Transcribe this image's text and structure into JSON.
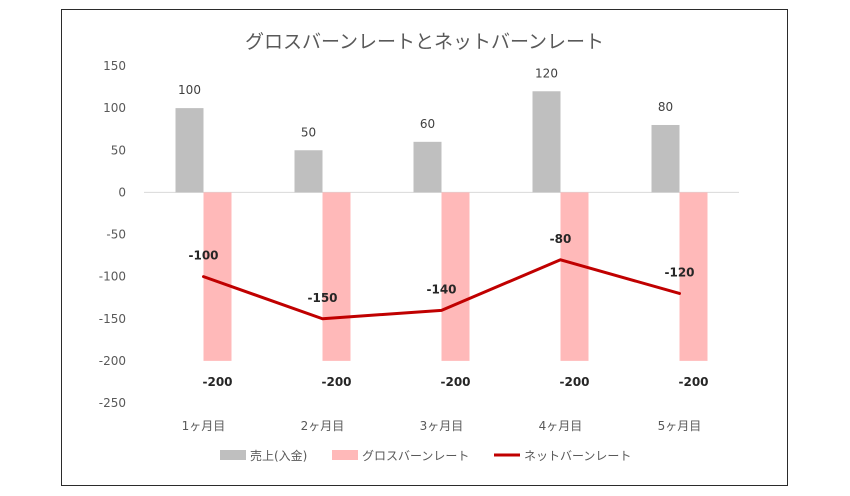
{
  "chart_data": {
    "type": "bar",
    "title": "グロスバーンレートとネットバーンレート",
    "categories": [
      "1ヶ月目",
      "2ヶ月目",
      "3ヶ月目",
      "4ヶ月目",
      "5ヶ月目"
    ],
    "ylim": [
      -250,
      150
    ],
    "yticks": [
      150,
      100,
      50,
      0,
      -50,
      -100,
      -150,
      -200,
      -250
    ],
    "grid": false,
    "legend_position": "bottom",
    "series": [
      {
        "name": "売上(入金)",
        "type": "bar",
        "color": "#bfbfbf",
        "values": [
          100,
          50,
          60,
          120,
          80
        ],
        "labels": [
          "100",
          "50",
          "60",
          "120",
          "80"
        ]
      },
      {
        "name": "グロスバーンレート",
        "type": "bar",
        "color": "#ffb9b9",
        "values": [
          -200,
          -200,
          -200,
          -200,
          -200
        ],
        "labels": [
          "-200",
          "-200",
          "-200",
          "-200",
          "-200"
        ]
      },
      {
        "name": "ネットバーンレート",
        "type": "line",
        "color": "#c00000",
        "values": [
          -100,
          -150,
          -140,
          -80,
          -120
        ],
        "labels": [
          "-100",
          "-150",
          "-140",
          "-80",
          "-120"
        ]
      }
    ]
  }
}
